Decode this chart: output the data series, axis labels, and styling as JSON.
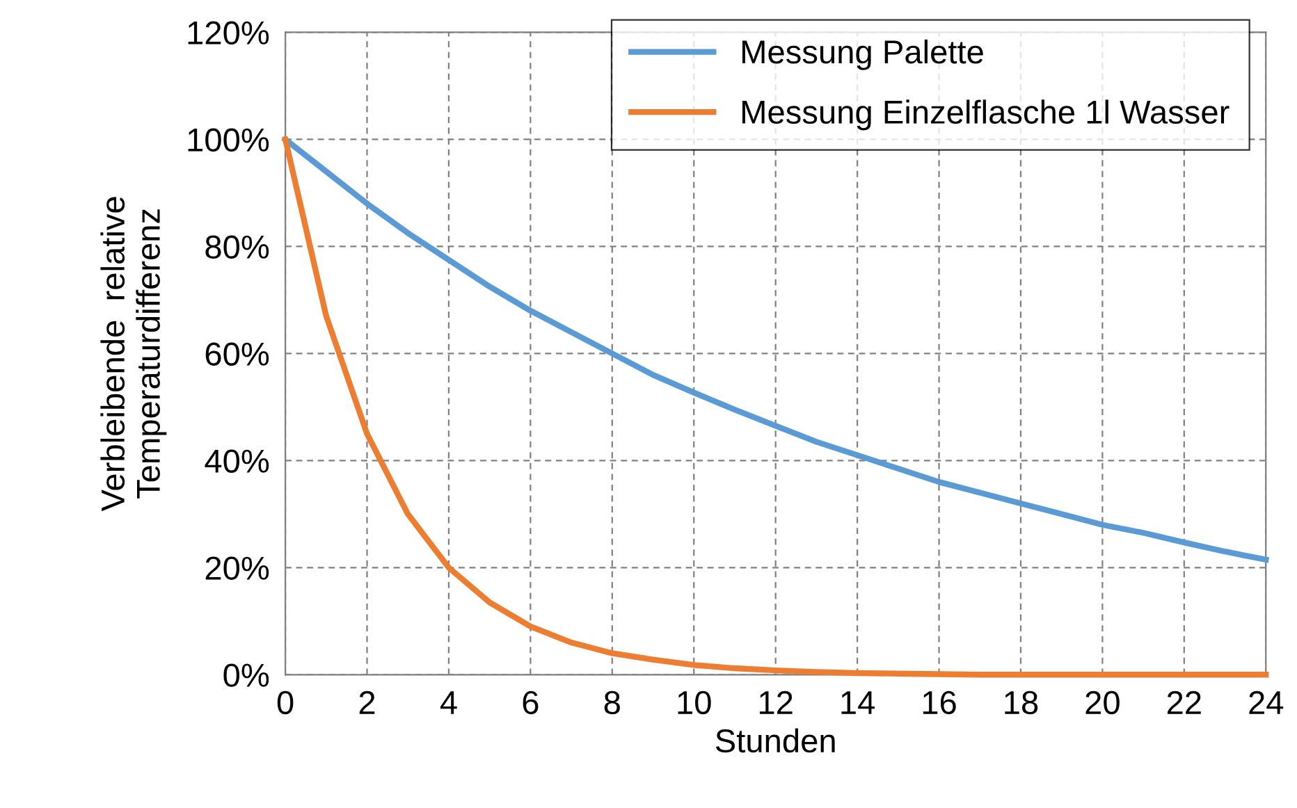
{
  "chart_data": {
    "type": "line",
    "xlabel": "Stunden",
    "ylabel": "Verbleibende  relative\nTemperaturdifferenz",
    "x": [
      0,
      1,
      2,
      3,
      4,
      5,
      6,
      7,
      8,
      9,
      10,
      11,
      12,
      13,
      14,
      15,
      16,
      17,
      18,
      19,
      20,
      21,
      22,
      23,
      24
    ],
    "series": [
      {
        "name": "Messung Palette",
        "color": "#5b9bd5",
        "values": [
          100,
          94,
          88,
          82.5,
          77.5,
          72.5,
          68,
          64,
          60,
          56,
          52.7,
          49.5,
          46.5,
          43.5,
          41,
          38.5,
          36,
          34,
          32,
          30,
          28,
          26.5,
          24.7,
          23,
          21.5
        ]
      },
      {
        "name": "Messung Einzelflasche 1l Wasser",
        "color": "#ed7d31",
        "values": [
          100,
          67,
          45,
          30,
          20,
          13.5,
          9,
          6,
          4,
          2.8,
          1.8,
          1.2,
          0.8,
          0.5,
          0.3,
          0.2,
          0.1,
          0,
          0,
          0,
          0,
          0,
          0,
          0,
          0
        ]
      }
    ],
    "xlim": [
      0,
      24
    ],
    "xticks": [
      0,
      2,
      4,
      6,
      8,
      10,
      12,
      14,
      16,
      18,
      20,
      22,
      24
    ],
    "ylim": [
      0,
      120
    ],
    "yticks": [
      {
        "value": 0,
        "label": "0%"
      },
      {
        "value": 20,
        "label": "20%"
      },
      {
        "value": 40,
        "label": "40%"
      },
      {
        "value": 60,
        "label": "60%"
      },
      {
        "value": 80,
        "label": "80%"
      },
      {
        "value": 100,
        "label": "100%"
      },
      {
        "value": 120,
        "label": "120%"
      }
    ],
    "grid": true,
    "legend": "top right",
    "marker": "none",
    "line_style": "solid"
  }
}
